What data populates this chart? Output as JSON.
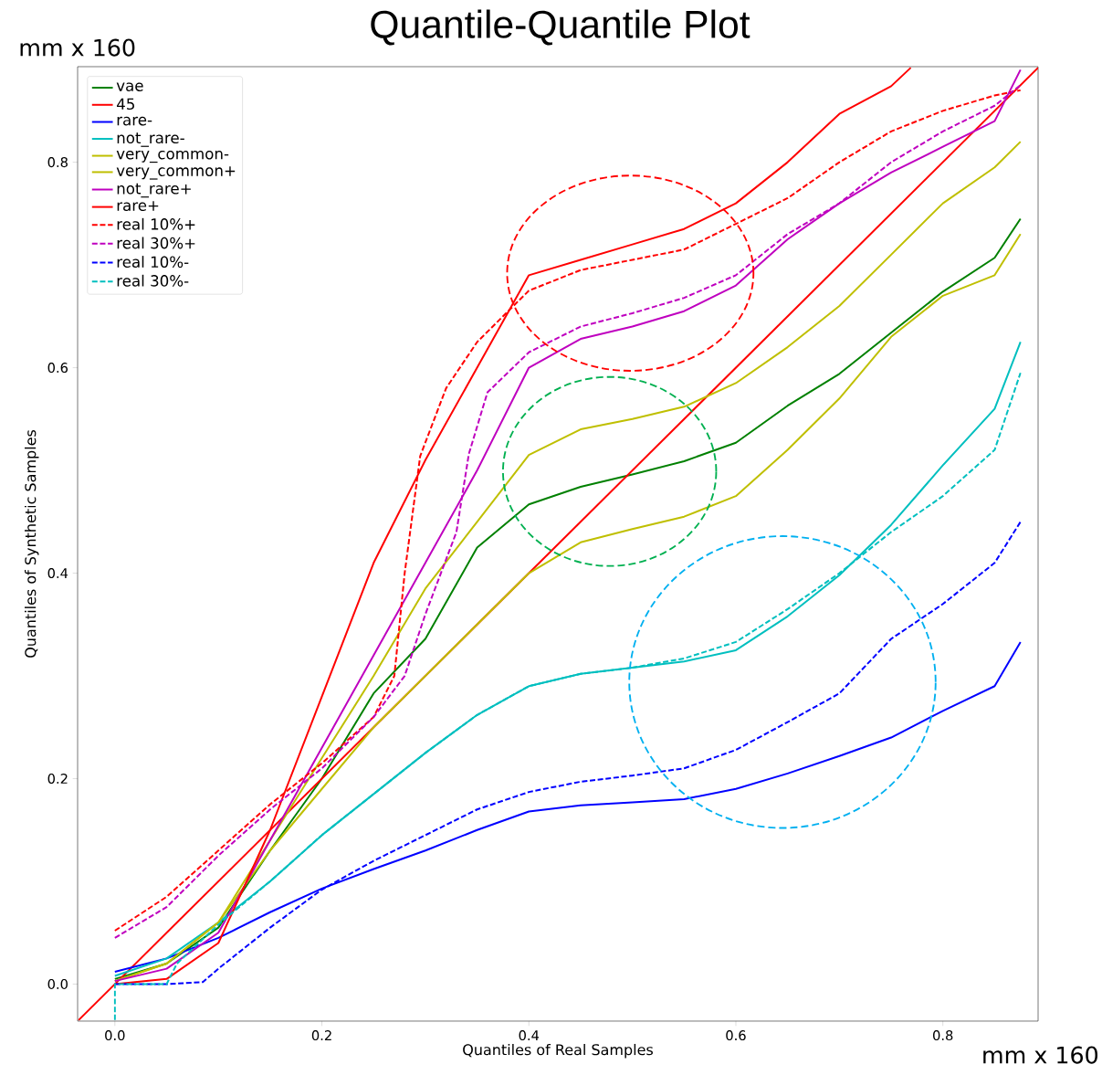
{
  "chart_data": {
    "type": "line",
    "title": "Quantile-Quantile Plot",
    "xlabel": "Quantiles of Real Samples",
    "ylabel": "Quantiles of Synthetic Samples",
    "annotations": [
      "mm x 160",
      "mm x 160"
    ],
    "xlim": [
      -0.036,
      0.892
    ],
    "ylim": [
      -0.036,
      0.893
    ],
    "xticks": [
      {
        "value": 0,
        "label": "0.0"
      },
      {
        "value": 0.2,
        "label": "0.2"
      },
      {
        "value": 0.4,
        "label": "0.4"
      },
      {
        "value": 0.6,
        "label": "0.6"
      },
      {
        "value": 0.8,
        "label": "0.8"
      }
    ],
    "yticks": [
      {
        "value": 0,
        "label": "0.0"
      },
      {
        "value": 0.2,
        "label": "0.2"
      },
      {
        "value": 0.4,
        "label": "0.4"
      },
      {
        "value": 0.6,
        "label": "0.6"
      },
      {
        "value": 0.8,
        "label": "0.8"
      }
    ],
    "legend": "top left",
    "series": [
      {
        "name": "vae",
        "color": "#008000",
        "line_style": "solid",
        "x": [
          0,
          0.05,
          0.1,
          0.15,
          0.2,
          0.25,
          0.3,
          0.35,
          0.4,
          0.45,
          0.5,
          0.55,
          0.6,
          0.65,
          0.7,
          0.75,
          0.8,
          0.85,
          0.875
        ],
        "values": [
          0.005,
          0.02,
          0.055,
          0.13,
          0.2,
          0.283,
          0.336,
          0.425,
          0.467,
          0.484,
          0.496,
          0.509,
          0.527,
          0.563,
          0.594,
          0.634,
          0.674,
          0.707,
          0.745
        ]
      },
      {
        "name": "45",
        "color": "#ff0000",
        "line_style": "solid",
        "x": [
          -0.035,
          0.892
        ],
        "values": [
          -0.035,
          0.892
        ]
      },
      {
        "name": "rare-",
        "color": "#0000ff",
        "line_style": "solid",
        "x": [
          0,
          0.05,
          0.1,
          0.15,
          0.2,
          0.25,
          0.3,
          0.35,
          0.4,
          0.45,
          0.5,
          0.55,
          0.6,
          0.65,
          0.7,
          0.75,
          0.8,
          0.85,
          0.875
        ],
        "values": [
          0.012,
          0.025,
          0.045,
          0.07,
          0.093,
          0.112,
          0.13,
          0.15,
          0.168,
          0.174,
          0.177,
          0.18,
          0.19,
          0.205,
          0.222,
          0.24,
          0.266,
          0.29,
          0.333
        ]
      },
      {
        "name": "not_rare-",
        "color": "#00bfbf",
        "line_style": "solid",
        "x": [
          0,
          0.05,
          0.1,
          0.15,
          0.2,
          0.25,
          0.3,
          0.35,
          0.4,
          0.45,
          0.5,
          0.55,
          0.6,
          0.65,
          0.7,
          0.75,
          0.8,
          0.85,
          0.875
        ],
        "values": [
          0.008,
          0.025,
          0.06,
          0.1,
          0.145,
          0.185,
          0.225,
          0.262,
          0.29,
          0.302,
          0.308,
          0.314,
          0.325,
          0.358,
          0.398,
          0.447,
          0.505,
          0.56,
          0.625
        ]
      },
      {
        "name": "very_common-",
        "color": "#bfbf00",
        "line_style": "solid",
        "x": [
          0,
          0.05,
          0.1,
          0.15,
          0.2,
          0.25,
          0.3,
          0.35,
          0.4,
          0.45,
          0.5,
          0.55,
          0.6,
          0.65,
          0.7,
          0.75,
          0.8,
          0.85,
          0.875
        ],
        "values": [
          0.003,
          0.02,
          0.06,
          0.14,
          0.22,
          0.3,
          0.385,
          0.45,
          0.515,
          0.54,
          0.55,
          0.562,
          0.585,
          0.62,
          0.66,
          0.71,
          0.76,
          0.795,
          0.82
        ]
      },
      {
        "name": "very_common+",
        "color": "#bfbf00",
        "line_style": "solid",
        "x": [
          0,
          0.05,
          0.1,
          0.15,
          0.2,
          0.25,
          0.3,
          0.35,
          0.4,
          0.45,
          0.5,
          0.55,
          0.6,
          0.65,
          0.7,
          0.75,
          0.8,
          0.85,
          0.875
        ],
        "values": [
          0.003,
          0.02,
          0.06,
          0.13,
          0.19,
          0.25,
          0.3,
          0.35,
          0.4,
          0.43,
          0.443,
          0.455,
          0.475,
          0.52,
          0.57,
          0.63,
          0.67,
          0.69,
          0.73
        ]
      },
      {
        "name": "not_rare+",
        "color": "#bf00bf",
        "line_style": "solid",
        "x": [
          0,
          0.05,
          0.1,
          0.15,
          0.2,
          0.25,
          0.3,
          0.35,
          0.4,
          0.45,
          0.5,
          0.55,
          0.6,
          0.65,
          0.7,
          0.75,
          0.8,
          0.85,
          0.875
        ],
        "values": [
          0.003,
          0.015,
          0.05,
          0.14,
          0.23,
          0.32,
          0.41,
          0.5,
          0.6,
          0.628,
          0.64,
          0.655,
          0.68,
          0.725,
          0.76,
          0.79,
          0.815,
          0.84,
          0.89
        ]
      },
      {
        "name": "rare+",
        "color": "#ff0000",
        "line_style": "solid",
        "x": [
          0,
          0.05,
          0.1,
          0.15,
          0.2,
          0.25,
          0.3,
          0.35,
          0.4,
          0.45,
          0.5,
          0.55,
          0.6,
          0.65,
          0.7,
          0.75,
          0.769
        ],
        "values": [
          0.0,
          0.005,
          0.04,
          0.15,
          0.28,
          0.41,
          0.51,
          0.6,
          0.69,
          0.705,
          0.72,
          0.735,
          0.76,
          0.8,
          0.847,
          0.874,
          0.892
        ]
      },
      {
        "name": "real 10%+",
        "color": "#ff0000",
        "line_style": "dashed",
        "x": [
          0,
          0.05,
          0.1,
          0.15,
          0.2,
          0.25,
          0.27,
          0.28,
          0.295,
          0.32,
          0.35,
          0.4,
          0.45,
          0.5,
          0.55,
          0.6,
          0.65,
          0.7,
          0.75,
          0.8,
          0.85,
          0.875
        ],
        "values": [
          0.052,
          0.085,
          0.13,
          0.175,
          0.215,
          0.26,
          0.3,
          0.4,
          0.514,
          0.58,
          0.625,
          0.675,
          0.695,
          0.705,
          0.715,
          0.74,
          0.765,
          0.8,
          0.83,
          0.85,
          0.865,
          0.87
        ]
      },
      {
        "name": "real 30%+",
        "color": "#bf00bf",
        "line_style": "dashed",
        "x": [
          0,
          0.05,
          0.1,
          0.15,
          0.2,
          0.25,
          0.28,
          0.3,
          0.33,
          0.342,
          0.36,
          0.4,
          0.45,
          0.5,
          0.55,
          0.6,
          0.65,
          0.7,
          0.75,
          0.8,
          0.85,
          0.875
        ],
        "values": [
          0.045,
          0.075,
          0.125,
          0.17,
          0.21,
          0.26,
          0.3,
          0.36,
          0.44,
          0.516,
          0.576,
          0.615,
          0.64,
          0.653,
          0.668,
          0.69,
          0.73,
          0.76,
          0.8,
          0.83,
          0.855,
          0.875
        ]
      },
      {
        "name": "real 10%-",
        "color": "#0000ff",
        "line_style": "dashed",
        "x": [
          0,
          0.05,
          0.085,
          0.1,
          0.15,
          0.2,
          0.25,
          0.3,
          0.35,
          0.4,
          0.45,
          0.5,
          0.55,
          0.6,
          0.65,
          0.7,
          0.75,
          0.8,
          0.85,
          0.875
        ],
        "values": [
          0,
          0,
          0.002,
          0.015,
          0.055,
          0.092,
          0.12,
          0.145,
          0.17,
          0.187,
          0.197,
          0.203,
          0.21,
          0.228,
          0.255,
          0.283,
          0.336,
          0.37,
          0.41,
          0.45
        ]
      },
      {
        "name": "real 30%-",
        "color": "#00bfbf",
        "line_style": "dashed",
        "x": [
          0,
          0,
          0.05,
          0.06,
          0.1,
          0.15,
          0.2,
          0.25,
          0.3,
          0.35,
          0.4,
          0.45,
          0.5,
          0.55,
          0.6,
          0.65,
          0.7,
          0.75,
          0.8,
          0.85,
          0.875
        ],
        "values": [
          -0.035,
          0,
          0,
          0.02,
          0.058,
          0.1,
          0.145,
          0.185,
          0.225,
          0.262,
          0.29,
          0.302,
          0.308,
          0.317,
          0.333,
          0.365,
          0.4,
          0.44,
          0.475,
          0.52,
          0.595
        ]
      }
    ]
  }
}
